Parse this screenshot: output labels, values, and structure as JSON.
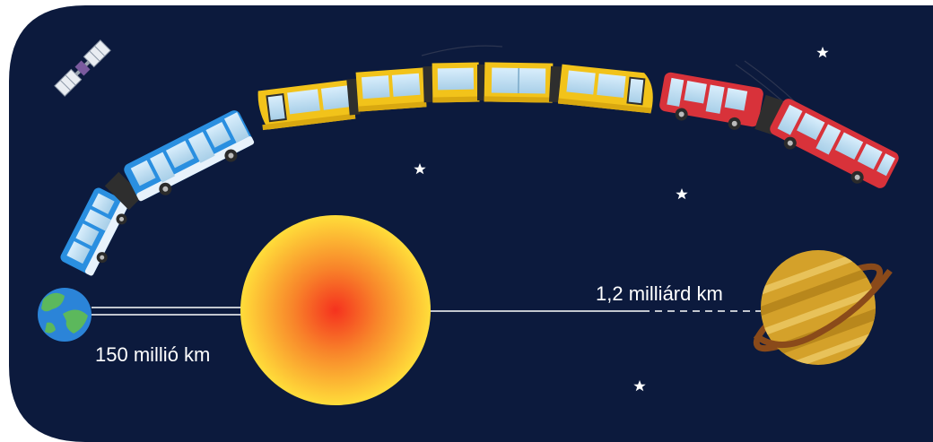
{
  "labels": {
    "earth_sun_distance": "150 millió km",
    "sun_saturn_distance": "1,2 milliárd km"
  },
  "colors": {
    "background": "#0c1a3d",
    "blue_bus": "#2a8fe0",
    "yellow_tram": "#f2c31a",
    "red_bus": "#d8323a",
    "sun_core": "#f5321e",
    "sun_edge": "#ffdd3a",
    "saturn": "#d4a12a"
  },
  "icons": {
    "satellite": "satellite-icon",
    "earth": "earth-icon",
    "sun": "sun-icon",
    "saturn": "saturn-icon",
    "star": "star-icon"
  }
}
